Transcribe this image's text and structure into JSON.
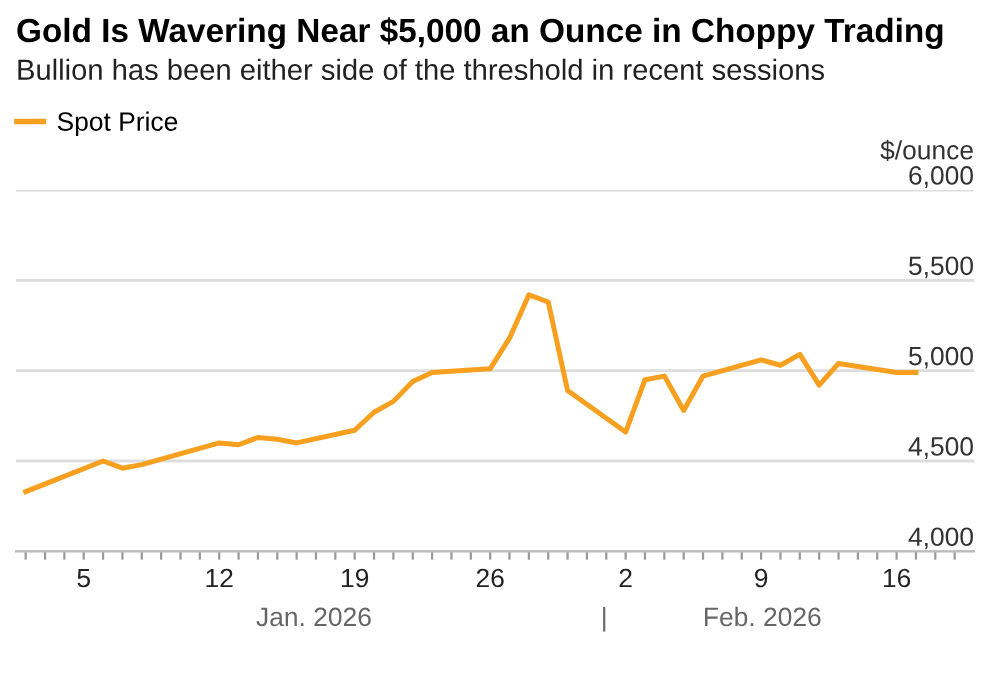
{
  "chart_data": {
    "type": "line",
    "title": "Gold Is Wavering Near $5,000 an Ounce in Choppy Trading",
    "subtitle": "Bullion has been either side of the threshold in recent sessions",
    "ylabel": "$/ounce",
    "x": [
      "2026-01-02",
      "2026-01-06",
      "2026-01-07",
      "2026-01-08",
      "2026-01-12",
      "2026-01-13",
      "2026-01-14",
      "2026-01-15",
      "2026-01-16",
      "2026-01-19",
      "2026-01-20",
      "2026-01-21",
      "2026-01-22",
      "2026-01-23",
      "2026-01-26",
      "2026-01-27",
      "2026-01-28",
      "2026-01-29",
      "2026-01-30",
      "2026-02-02",
      "2026-02-03",
      "2026-02-04",
      "2026-02-05",
      "2026-02-06",
      "2026-02-09",
      "2026-02-10",
      "2026-02-11",
      "2026-02-12",
      "2026-02-13",
      "2026-02-16",
      "2026-02-17"
    ],
    "series": [
      {
        "name": "Spot Price",
        "color": "#f7a01f",
        "values": [
          4330,
          4500,
          4460,
          4480,
          4600,
          4590,
          4630,
          4620,
          4600,
          4670,
          4770,
          4830,
          4940,
          4990,
          5010,
          5180,
          5420,
          5380,
          4890,
          4660,
          4950,
          4970,
          4780,
          4970,
          5060,
          5030,
          5090,
          4920,
          5040,
          4990,
          4990
        ]
      }
    ],
    "xlim": [
      "2026-01-01T12:00",
      "2026-02-20"
    ],
    "xticks": [
      {
        "value": "2026-01-02",
        "label": null
      },
      {
        "value": "2026-01-03",
        "label": null
      },
      {
        "value": "2026-01-04",
        "label": null
      },
      {
        "value": "2026-01-05",
        "label": "5"
      },
      {
        "value": "2026-01-06",
        "label": null
      },
      {
        "value": "2026-01-07",
        "label": null
      },
      {
        "value": "2026-01-08",
        "label": null
      },
      {
        "value": "2026-01-09",
        "label": null
      },
      {
        "value": "2026-01-10",
        "label": null
      },
      {
        "value": "2026-01-11",
        "label": null
      },
      {
        "value": "2026-01-12",
        "label": "12"
      },
      {
        "value": "2026-01-13",
        "label": null
      },
      {
        "value": "2026-01-14",
        "label": null
      },
      {
        "value": "2026-01-15",
        "label": null
      },
      {
        "value": "2026-01-16",
        "label": null
      },
      {
        "value": "2026-01-17",
        "label": null
      },
      {
        "value": "2026-01-18",
        "label": null
      },
      {
        "value": "2026-01-19",
        "label": "19"
      },
      {
        "value": "2026-01-20",
        "label": null
      },
      {
        "value": "2026-01-21",
        "label": null
      },
      {
        "value": "2026-01-22",
        "label": null
      },
      {
        "value": "2026-01-23",
        "label": null
      },
      {
        "value": "2026-01-24",
        "label": null
      },
      {
        "value": "2026-01-25",
        "label": null
      },
      {
        "value": "2026-01-26",
        "label": "26"
      },
      {
        "value": "2026-01-27",
        "label": null
      },
      {
        "value": "2026-01-28",
        "label": null
      },
      {
        "value": "2026-01-29",
        "label": null
      },
      {
        "value": "2026-01-30",
        "label": null
      },
      {
        "value": "2026-01-31",
        "label": null
      },
      {
        "value": "2026-02-01",
        "label": null
      },
      {
        "value": "2026-02-02",
        "label": "2"
      },
      {
        "value": "2026-02-03",
        "label": null
      },
      {
        "value": "2026-02-04",
        "label": null
      },
      {
        "value": "2026-02-05",
        "label": null
      },
      {
        "value": "2026-02-06",
        "label": null
      },
      {
        "value": "2026-02-07",
        "label": null
      },
      {
        "value": "2026-02-08",
        "label": null
      },
      {
        "value": "2026-02-09",
        "label": "9"
      },
      {
        "value": "2026-02-10",
        "label": null
      },
      {
        "value": "2026-02-11",
        "label": null
      },
      {
        "value": "2026-02-12",
        "label": null
      },
      {
        "value": "2026-02-13",
        "label": null
      },
      {
        "value": "2026-02-14",
        "label": null
      },
      {
        "value": "2026-02-15",
        "label": null
      },
      {
        "value": "2026-02-16",
        "label": "16"
      },
      {
        "value": "2026-02-17",
        "label": null
      },
      {
        "value": "2026-02-18",
        "label": null
      },
      {
        "value": "2026-02-19",
        "label": null
      }
    ],
    "ylim": [
      4000,
      6000
    ],
    "yticks": [
      {
        "value": 4000,
        "label": "4,000"
      },
      {
        "value": 4500,
        "label": "4,500"
      },
      {
        "value": 5000,
        "label": "5,000"
      },
      {
        "value": 5500,
        "label": "5,500"
      },
      {
        "value": 6000,
        "label": "6,000"
      }
    ],
    "annotations": [
      "Jan. 2026",
      "|",
      "Feb. 2026"
    ],
    "grid": "y",
    "legend": "top left",
    "marker": "none",
    "line_style": "solid"
  }
}
